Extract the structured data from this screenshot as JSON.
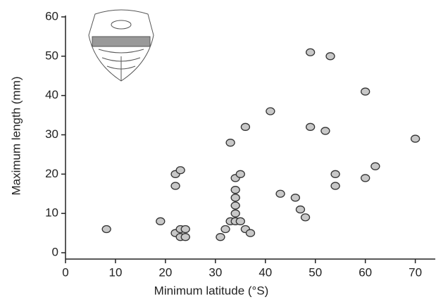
{
  "chart_data": {
    "type": "scatter",
    "x_label": "Minimum latitude (°S)",
    "y_label": "Maximum length (mm)",
    "x": [
      8.2,
      19,
      22,
      23,
      22,
      22,
      23,
      24,
      23,
      24,
      31,
      32,
      33,
      33,
      34,
      35,
      34,
      34,
      34,
      34,
      34,
      35,
      36,
      37,
      36,
      41,
      43,
      46,
      47,
      48,
      49,
      53,
      49,
      52,
      54,
      54,
      60,
      60,
      62,
      70
    ],
    "values": [
      6,
      8,
      20,
      21,
      17,
      5,
      6,
      6,
      4,
      4,
      4,
      6,
      28,
      8,
      19,
      20,
      16,
      14,
      12,
      10,
      8,
      8,
      6,
      5,
      32,
      36,
      15,
      14,
      11,
      9,
      51,
      50,
      32,
      31,
      20,
      17,
      41,
      19,
      22,
      29
    ],
    "color": "#c8c8c8",
    "xlim": [
      0,
      74
    ],
    "xticks": [
      0,
      10,
      20,
      30,
      40,
      50,
      60,
      70
    ],
    "ylim": [
      0,
      60
    ],
    "yticks": [
      0,
      10,
      20,
      30,
      40,
      50,
      60
    ]
  }
}
